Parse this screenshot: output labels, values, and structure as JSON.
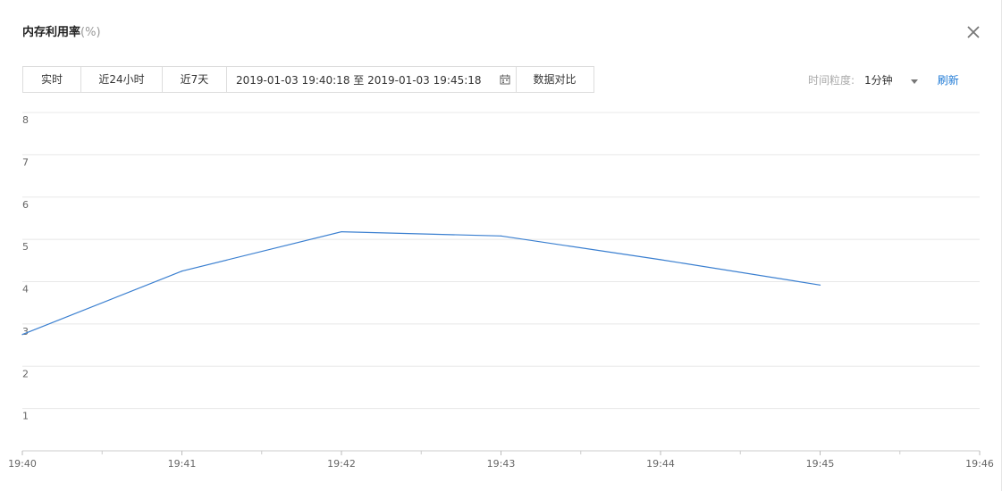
{
  "header": {
    "title": "内存利用率",
    "unit": "(%)"
  },
  "toolbar": {
    "ranges": [
      "实时",
      "近24小时",
      "近7天"
    ],
    "date_range": "2019-01-03 19:40:18 至 2019-01-03 19:45:18",
    "compare_label": "数据对比",
    "granularity_label": "时间粒度:",
    "granularity_value": "1分钟",
    "refresh_label": "刷新"
  },
  "icons": {
    "close": "close-icon",
    "calendar": "calendar-icon",
    "caret": "caret-down-icon"
  },
  "colors": {
    "line": "#3a7fd0",
    "grid": "#e8e8e8",
    "link": "#1f7ad6"
  },
  "chart_data": {
    "type": "line",
    "title": "",
    "xlabel": "",
    "ylabel": "",
    "x_ticks": [
      "19:40",
      "19:41",
      "19:42",
      "19:43",
      "19:44",
      "19:45",
      "19:46"
    ],
    "y_ticks": [
      1,
      2,
      3,
      4,
      5,
      6,
      7,
      8
    ],
    "ylim": [
      0,
      8
    ],
    "grid": true,
    "series": [
      {
        "x": [
          "19:40",
          "19:41",
          "19:42",
          "19:43",
          "19:44",
          "19:45"
        ],
        "values": [
          2.75,
          4.25,
          5.18,
          5.08,
          4.52,
          3.92
        ]
      }
    ]
  }
}
